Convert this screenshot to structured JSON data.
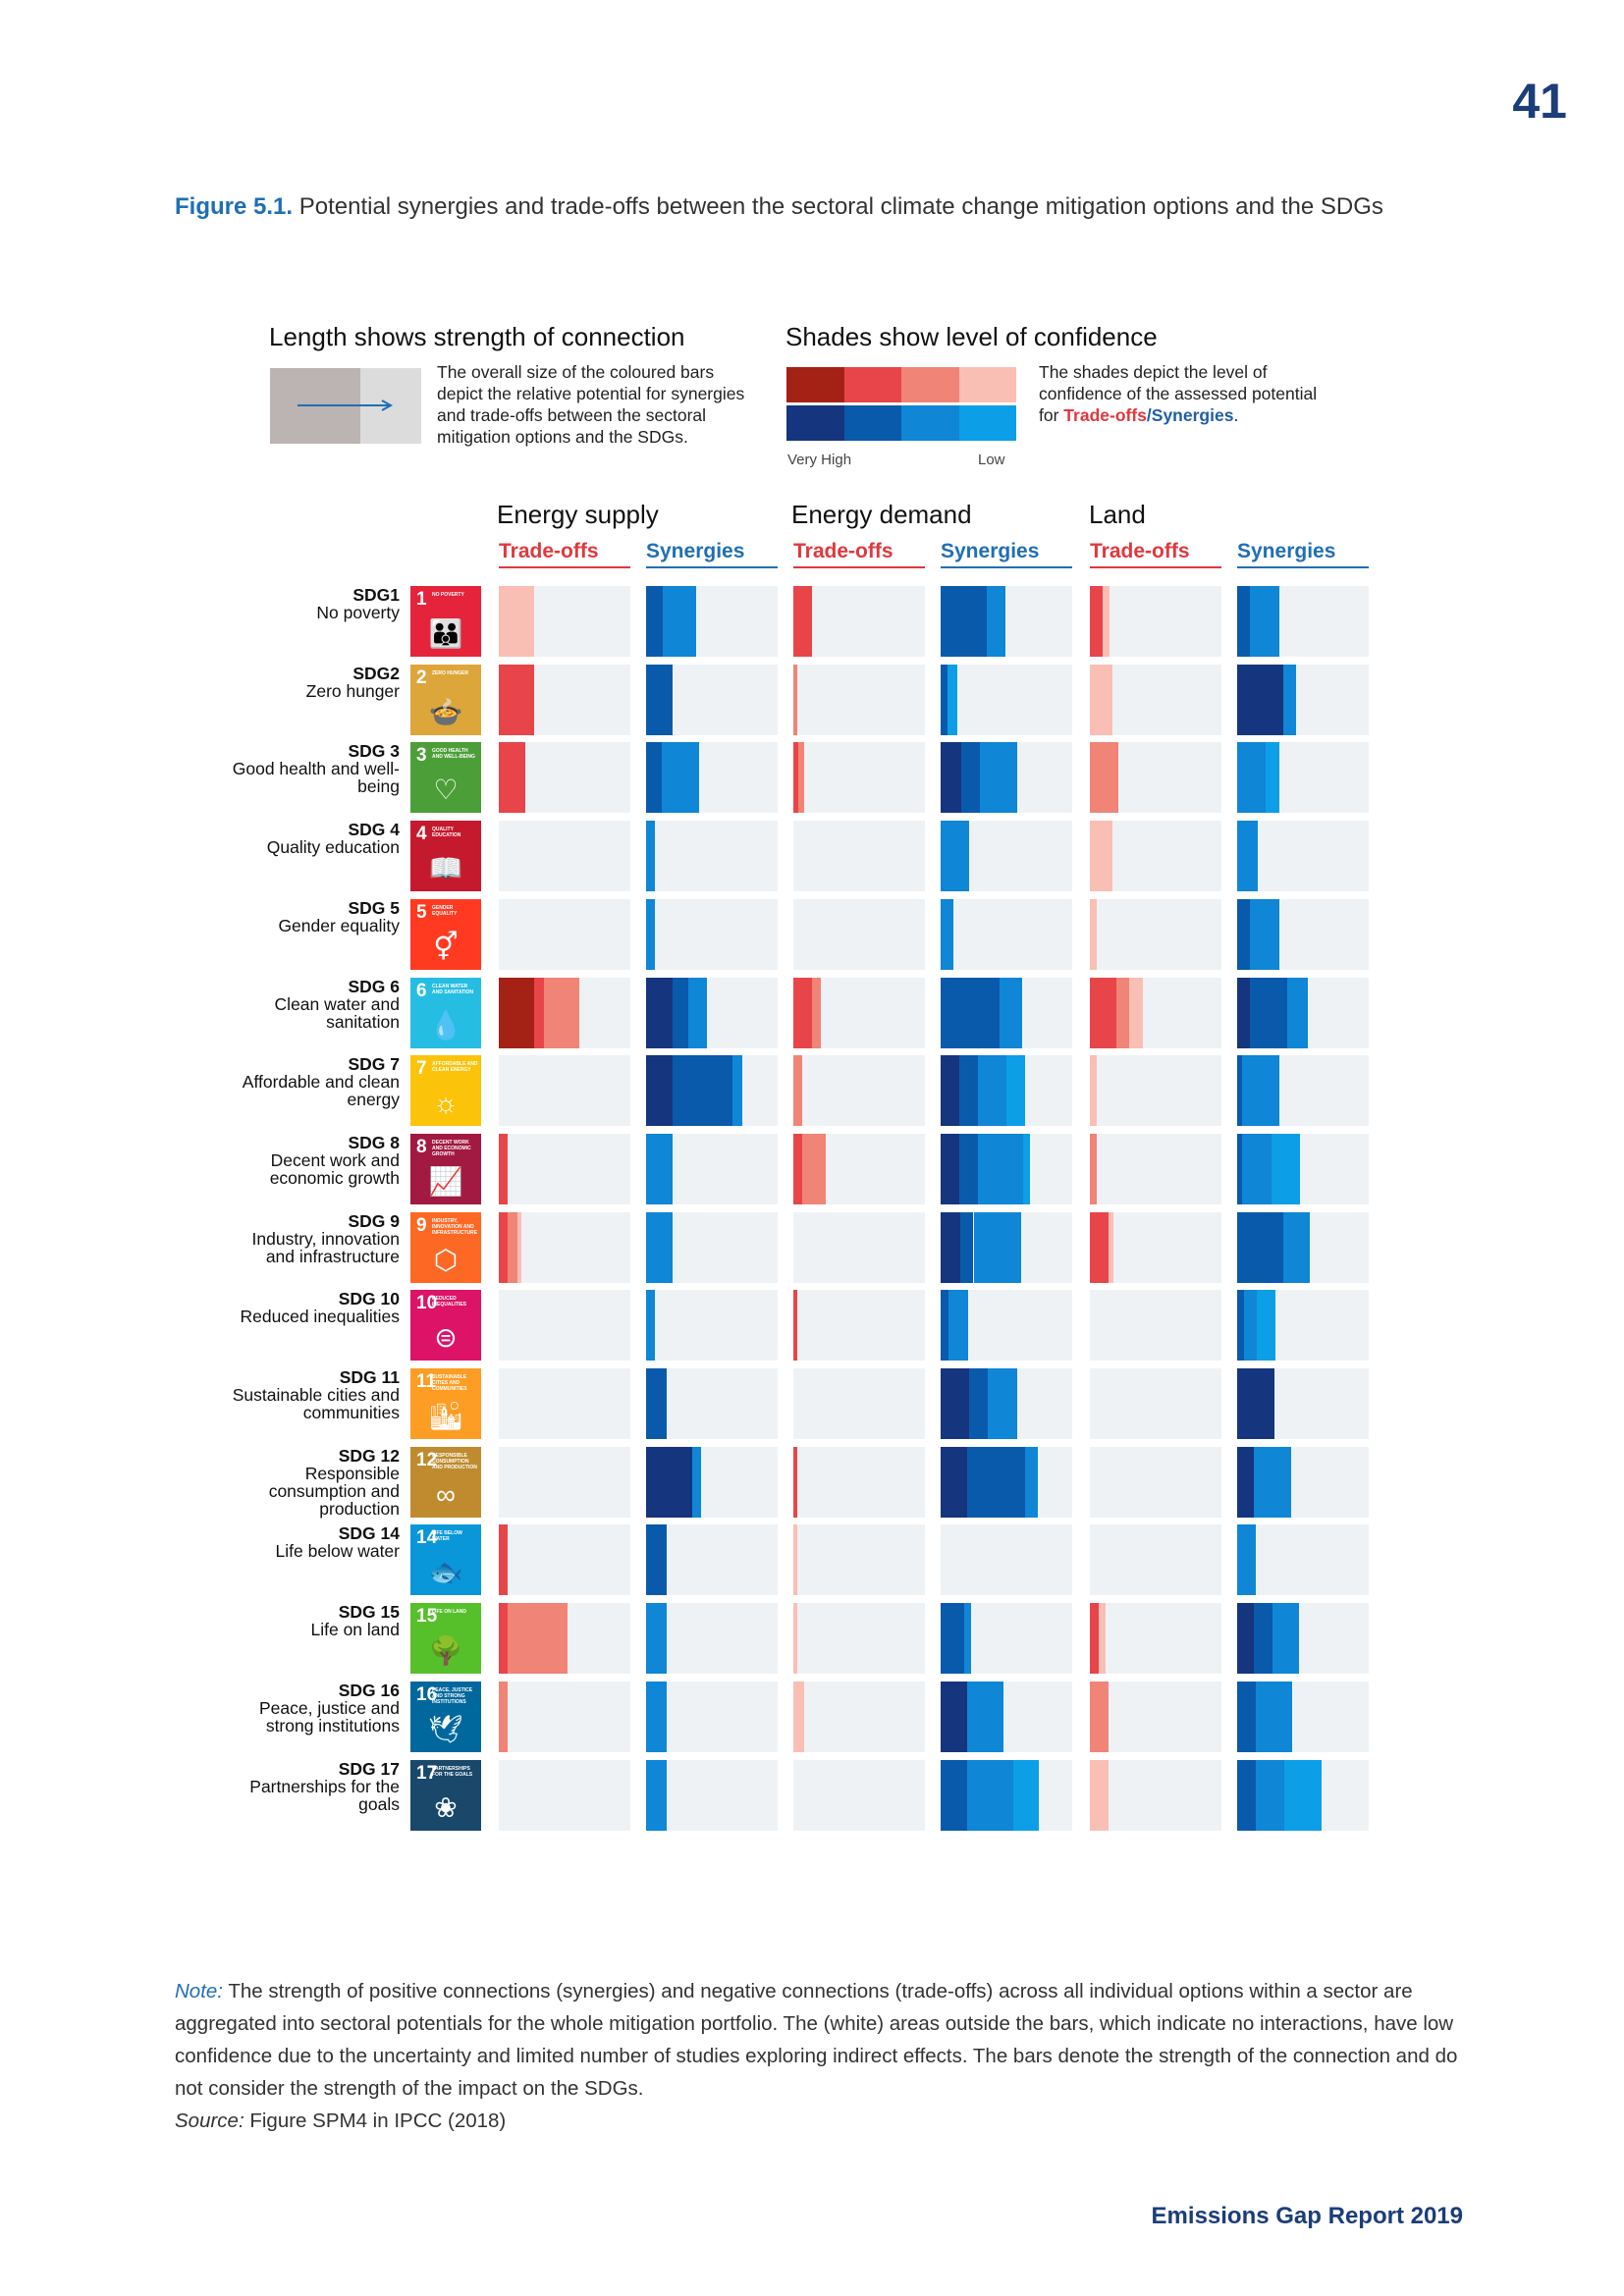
{
  "page_number": "41",
  "caption": {
    "label": "Figure 5.1.",
    "text": "Potential synergies and trade-offs between the sectoral climate change mitigation options and the SDGs"
  },
  "legend": {
    "length_title": "Length shows strength of connection",
    "length_text_1": "The overall size of the coloured bars",
    "length_text_2": "depict the relative potential for synergies",
    "length_text_3": "and trade-offs between the sectoral",
    "length_text_4": "mitigation options and the SDGs.",
    "shade_title": "Shades show level of confidence",
    "shade_text_1": "The shades depict the level of",
    "shade_text_2": "confidence of the assessed potential",
    "shade_text_3": "for ",
    "shade_tradeoffs": "Trade-offs",
    "shade_slash": "/",
    "shade_synergies": "Synergies",
    "shade_dot": ".",
    "very_high": "Very High",
    "low": "Low",
    "tradeoff_colors": [
      "#a32215",
      "#e8454a",
      "#f08477",
      "#f9bfb5"
    ],
    "synergy_colors": [
      "#15357e",
      "#0a5aab",
      "#0f86d6",
      "#0d9ee8"
    ]
  },
  "chart_data": {
    "type": "bar",
    "title": "Potential synergies and trade-offs between the sectoral climate change mitigation options and the SDGs",
    "scale": "relative strength of connection, 0-1 of column width; segments ordered Very High, High, Medium, Low confidence",
    "sectors": [
      {
        "name": "Energy supply",
        "tradeoffs_label": "Trade-offs",
        "synergies_label": "Synergies"
      },
      {
        "name": "Energy demand",
        "tradeoffs_label": "Trade-offs",
        "synergies_label": "Synergies"
      },
      {
        "name": "Land",
        "tradeoffs_label": "Trade-offs",
        "synergies_label": "Synergies"
      }
    ],
    "confidence_levels": [
      "Very High",
      "High",
      "Medium",
      "Low"
    ],
    "rows": [
      {
        "code": "SDG1",
        "name": "No poverty",
        "tile_num": "1",
        "tile_title": "NO POVERTY",
        "tile_color": "#e5243b",
        "tile_icon": "👪",
        "values": [
          [
            0,
            0,
            0,
            0.27
          ],
          [
            0,
            0.13,
            0.25,
            0
          ],
          [
            0,
            0.14,
            0,
            0
          ],
          [
            0,
            0.35,
            0.14,
            0
          ],
          [
            0,
            0.1,
            0,
            0.05
          ],
          [
            0,
            0.1,
            0.22,
            0
          ]
        ]
      },
      {
        "code": "SDG2",
        "name": "Zero hunger",
        "tile_num": "2",
        "tile_title": "ZERO HUNGER",
        "tile_color": "#dda63a",
        "tile_icon": "🍲",
        "values": [
          [
            0,
            0.27,
            0,
            0
          ],
          [
            0,
            0.2,
            0,
            0
          ],
          [
            0,
            0,
            0.03,
            0
          ],
          [
            0,
            0.05,
            0,
            0.08
          ],
          [
            0,
            0,
            0,
            0.17
          ],
          [
            0.35,
            0,
            0.1,
            0
          ]
        ]
      },
      {
        "code": "SDG 3",
        "name": "Good health and well-being",
        "tile_num": "3",
        "tile_title": "GOOD HEALTH AND WELL-BEING",
        "tile_color": "#4c9f38",
        "tile_icon": "♡",
        "values": [
          [
            0,
            0.2,
            0,
            0
          ],
          [
            0,
            0.12,
            0.28,
            0
          ],
          [
            0,
            0.04,
            0.04,
            0
          ],
          [
            0.16,
            0.14,
            0.28,
            0
          ],
          [
            0,
            0,
            0.22,
            0
          ],
          [
            0,
            0,
            0.22,
            0.1
          ]
        ]
      },
      {
        "code": "SDG 4",
        "name": "Quality education",
        "tile_num": "4",
        "tile_title": "QUALITY EDUCATION",
        "tile_color": "#c5192d",
        "tile_icon": "📖",
        "values": [
          [
            0,
            0,
            0,
            0
          ],
          [
            0,
            0,
            0.07,
            0
          ],
          [
            0,
            0,
            0,
            0
          ],
          [
            0,
            0,
            0.22,
            0
          ],
          [
            0,
            0,
            0,
            0.17
          ],
          [
            0,
            0,
            0.16,
            0
          ]
        ]
      },
      {
        "code": "SDG 5",
        "name": "Gender equality",
        "tile_num": "5",
        "tile_title": "GENDER EQUALITY",
        "tile_color": "#ff3a21",
        "tile_icon": "⚥",
        "values": [
          [
            0,
            0,
            0,
            0
          ],
          [
            0,
            0,
            0.07,
            0
          ],
          [
            0,
            0,
            0,
            0
          ],
          [
            0,
            0,
            0.1,
            0
          ],
          [
            0,
            0,
            0,
            0.05
          ],
          [
            0,
            0.1,
            0.22,
            0
          ]
        ]
      },
      {
        "code": "SDG 6",
        "name": "Clean water and sanitation",
        "tile_num": "6",
        "tile_title": "CLEAN WATER AND SANITATION",
        "tile_color": "#26bde2",
        "tile_icon": "💧",
        "values": [
          [
            0.27,
            0.07,
            0.27,
            0
          ],
          [
            0.2,
            0.12,
            0.14,
            0
          ],
          [
            0,
            0.14,
            0.07,
            0
          ],
          [
            0,
            0.45,
            0.17,
            0
          ],
          [
            0,
            0.2,
            0.1,
            0.1
          ],
          [
            0.1,
            0.28,
            0.16,
            0
          ]
        ]
      },
      {
        "code": "SDG 7",
        "name": "Affordable and clean energy",
        "tile_num": "7",
        "tile_title": "AFFORDABLE AND CLEAN ENERGY",
        "tile_color": "#fcc30b",
        "tile_icon": "☼",
        "values": [
          [
            0,
            0,
            0,
            0
          ],
          [
            0.2,
            0.46,
            0.07,
            0
          ],
          [
            0,
            0,
            0.07,
            0
          ],
          [
            0.14,
            0.14,
            0.22,
            0.14
          ],
          [
            0,
            0,
            0,
            0.05
          ],
          [
            0,
            0.04,
            0.28,
            0
          ]
        ]
      },
      {
        "code": "SDG 8",
        "name": "Decent work and economic growth",
        "tile_num": "8",
        "tile_title": "DECENT WORK AND ECONOMIC GROWTH",
        "tile_color": "#a21942",
        "tile_icon": "📈",
        "values": [
          [
            0,
            0.07,
            0,
            0
          ],
          [
            0,
            0,
            0.2,
            0
          ],
          [
            0,
            0.07,
            0.18,
            0
          ],
          [
            0.14,
            0.14,
            0.35,
            0.05
          ],
          [
            0,
            0,
            0.05,
            0
          ],
          [
            0,
            0.04,
            0.22,
            0.22
          ]
        ]
      },
      {
        "code": "SDG 9",
        "name": "Industry, innovation and infrastructure",
        "tile_num": "9",
        "tile_title": "INDUSTRY, INNOVATION AND INFRASTRUCTURE",
        "tile_color": "#fd6925",
        "tile_icon": "⬡",
        "values": [
          [
            0,
            0.07,
            0.07,
            0.03
          ],
          [
            0,
            0,
            0.2,
            0
          ],
          [
            0,
            0,
            0,
            0
          ],
          [
            0.15,
            0.1,
            0.36,
            0
          ],
          [
            0,
            0.14,
            0,
            0.04
          ],
          [
            0,
            0.35,
            0.2,
            0
          ]
        ]
      },
      {
        "code": "SDG 10",
        "name": "Reduced inequalities",
        "tile_num": "10",
        "tile_title": "REDUCED INEQUALITIES",
        "tile_color": "#dd1367",
        "tile_icon": "⊜",
        "values": [
          [
            0,
            0,
            0,
            0
          ],
          [
            0,
            0,
            0.07,
            0
          ],
          [
            0,
            0.03,
            0,
            0
          ],
          [
            0,
            0.06,
            0.15,
            0
          ],
          [
            0,
            0,
            0,
            0
          ],
          [
            0,
            0.05,
            0.1,
            0.14
          ]
        ]
      },
      {
        "code": "SDG 11",
        "name": "Sustainable cities and communities",
        "tile_num": "11",
        "tile_title": "SUSTAINABLE CITIES AND COMMUNITIES",
        "tile_color": "#fd9d24",
        "tile_icon": "🏙",
        "values": [
          [
            0,
            0,
            0,
            0
          ],
          [
            0,
            0.16,
            0,
            0
          ],
          [
            0,
            0,
            0,
            0
          ],
          [
            0.22,
            0.14,
            0.22,
            0
          ],
          [
            0,
            0,
            0,
            0
          ],
          [
            0.28,
            0,
            0,
            0
          ]
        ]
      },
      {
        "code": "SDG 12",
        "name": "Responsible consumption and production",
        "tile_num": "12",
        "tile_title": "RESPONSIBLE CONSUMPTION AND PRODUCTION",
        "tile_color": "#bf8b2e",
        "tile_icon": "∞",
        "values": [
          [
            0,
            0,
            0,
            0
          ],
          [
            0.35,
            0,
            0.07,
            0
          ],
          [
            0,
            0.03,
            0,
            0
          ],
          [
            0.2,
            0.44,
            0.1,
            0
          ],
          [
            0,
            0,
            0,
            0
          ],
          [
            0.13,
            0,
            0.28,
            0
          ]
        ]
      },
      {
        "code": "SDG 14",
        "name": "Life below water",
        "tile_num": "14",
        "tile_title": "LIFE BELOW WATER",
        "tile_color": "#0a97d9",
        "tile_icon": "🐟",
        "values": [
          [
            0,
            0.07,
            0,
            0
          ],
          [
            0,
            0.16,
            0,
            0
          ],
          [
            0,
            0,
            0,
            0.03
          ],
          [
            0,
            0,
            0,
            0
          ],
          [
            0,
            0,
            0,
            0
          ],
          [
            0,
            0,
            0.14,
            0
          ]
        ]
      },
      {
        "code": "SDG 15",
        "name": "Life on land",
        "tile_num": "15",
        "tile_title": "LIFE ON LAND",
        "tile_color": "#56c02b",
        "tile_icon": "🌳",
        "values": [
          [
            0,
            0.07,
            0.45,
            0
          ],
          [
            0,
            0,
            0.16,
            0
          ],
          [
            0,
            0,
            0,
            0.03
          ],
          [
            0,
            0.18,
            0.05,
            0
          ],
          [
            0,
            0.07,
            0,
            0.05
          ],
          [
            0.13,
            0.14,
            0.2,
            0
          ]
        ]
      },
      {
        "code": "SDG 16",
        "name": "Peace, justice and strong institutions",
        "tile_num": "16",
        "tile_title": "PEACE, JUSTICE AND STRONG INSTITUTIONS",
        "tile_color": "#00689d",
        "tile_icon": "🕊",
        "values": [
          [
            0,
            0,
            0.07,
            0
          ],
          [
            0,
            0,
            0.16,
            0
          ],
          [
            0,
            0,
            0,
            0.08
          ],
          [
            0.2,
            0,
            0.28,
            0
          ],
          [
            0,
            0,
            0.14,
            0
          ],
          [
            0,
            0.14,
            0.28,
            0
          ]
        ]
      },
      {
        "code": "SDG 17",
        "name": "Partnerships for the goals",
        "tile_num": "17",
        "tile_title": "PARTNERSHIPS FOR THE GOALS",
        "tile_color": "#19486a",
        "tile_icon": "❀",
        "values": [
          [
            0,
            0,
            0,
            0
          ],
          [
            0,
            0,
            0.16,
            0
          ],
          [
            0,
            0,
            0,
            0
          ],
          [
            0,
            0.2,
            0.35,
            0.2
          ],
          [
            0,
            0,
            0,
            0.14
          ],
          [
            0,
            0.14,
            0.22,
            0.28
          ]
        ]
      }
    ]
  },
  "note": {
    "note_label": "Note:",
    "note_text": " The strength of positive connections (synergies) and negative connections (trade-offs) across all individual options within a sector are aggregated into sectoral potentials for the whole mitigation portfolio. The (white) areas outside the bars, which indicate no interactions, have low confidence due to the uncertainty and limited number of studies exploring indirect effects. The bars denote the strength of the connection and do not consider the strength of the impact on the SDGs.",
    "source_label": "Source:",
    "source_text": " Figure SPM4 in IPCC (2018)"
  },
  "footer": "Emissions Gap Report 2019"
}
